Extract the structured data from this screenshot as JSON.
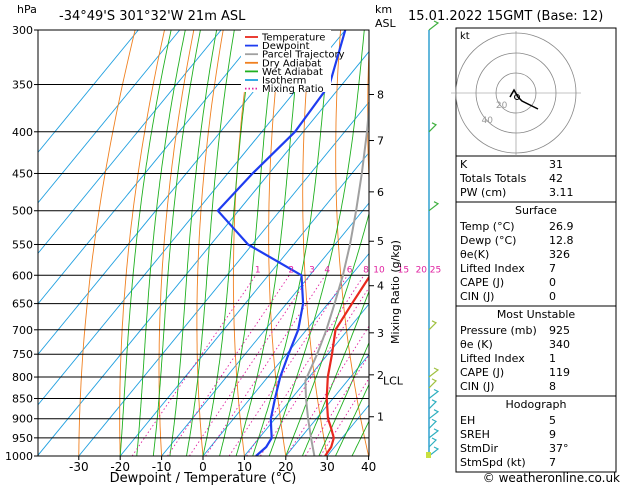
{
  "header": {
    "location": "-34°49'S 301°32'W 21m ASL",
    "datetime": "15.01.2022 15GMT (Base: 12)",
    "hpa_label": "hPa",
    "km_label": "km",
    "asl_label": "ASL",
    "mixing_axis_label": "Mixing Ratio (g/kg)",
    "xlabel": "Dewpoint / Temperature (°C)",
    "credit": "© weatheronline.co.uk"
  },
  "legend": [
    {
      "label": "Temperature",
      "color": "#e8281e",
      "style": "solid"
    },
    {
      "label": "Dewpoint",
      "color": "#1e3cf0",
      "style": "solid"
    },
    {
      "label": "Parcel Trajectory",
      "color": "#a0a0a0",
      "style": "solid"
    },
    {
      "label": "Dry Adiabat",
      "color": "#f08020",
      "style": "solid"
    },
    {
      "label": "Wet Adiabat",
      "color": "#20b020",
      "style": "solid"
    },
    {
      "label": "Isotherm",
      "color": "#20a0e0",
      "style": "solid"
    },
    {
      "label": "Mixing Ratio",
      "color": "#e020a0",
      "style": "dotted"
    }
  ],
  "chart_data": {
    "type": "line",
    "title": "",
    "xlabel": "Dewpoint / Temperature (°C)",
    "ylabel": "hPa",
    "x_ticks": [
      -30,
      -20,
      -10,
      0,
      10,
      20,
      30,
      40
    ],
    "pressure_levels": [
      300,
      350,
      400,
      450,
      500,
      550,
      600,
      650,
      700,
      750,
      800,
      850,
      900,
      950,
      1000
    ],
    "km_ticks": [
      {
        "label": "8",
        "p": 360
      },
      {
        "label": "7",
        "p": 410
      },
      {
        "label": "6",
        "p": 474
      },
      {
        "label": "5",
        "p": 545
      },
      {
        "label": "4",
        "p": 618
      },
      {
        "label": "3",
        "p": 706
      },
      {
        "label": "2",
        "p": 795
      },
      {
        "label": "1",
        "p": 895
      }
    ],
    "lcl": {
      "label": "LCL",
      "p": 808
    },
    "mixing_ratio_labels": [
      "1",
      "2",
      "3",
      "4",
      "6",
      "8",
      "10",
      "15",
      "20",
      "25"
    ],
    "mixing_ratio_values": [
      1,
      2,
      3,
      4,
      6,
      8,
      10,
      15,
      20,
      25
    ],
    "series": [
      {
        "name": "Temperature",
        "color": "#e8281e",
        "points": [
          [
            1000,
            29.5
          ],
          [
            975,
            29.2
          ],
          [
            950,
            28.0
          ],
          [
            925,
            25.5
          ],
          [
            900,
            22.8
          ],
          [
            850,
            18.5
          ],
          [
            800,
            14.5
          ],
          [
            750,
            11.0
          ],
          [
            700,
            7.0
          ],
          [
            650,
            5.8
          ],
          [
            600,
            4.6
          ],
          [
            550,
            1.4
          ],
          [
            500,
            -3.0
          ],
          [
            450,
            -8.6
          ],
          [
            400,
            -14.8
          ],
          [
            350,
            -25.6
          ],
          [
            300,
            -35.0
          ]
        ]
      },
      {
        "name": "Dewpoint",
        "color": "#1e3cf0",
        "points": [
          [
            1000,
            12.8
          ],
          [
            975,
            13.5
          ],
          [
            950,
            13.0
          ],
          [
            925,
            11.0
          ],
          [
            900,
            9.0
          ],
          [
            850,
            6.0
          ],
          [
            800,
            3.0
          ],
          [
            750,
            0.5
          ],
          [
            700,
            -2.0
          ],
          [
            650,
            -6.0
          ],
          [
            600,
            -12.0
          ],
          [
            550,
            -31.0
          ],
          [
            500,
            -45.0
          ],
          [
            450,
            -44.0
          ],
          [
            400,
            -42.0
          ],
          [
            350,
            -43.0
          ],
          [
            300,
            -50.0
          ]
        ]
      },
      {
        "name": "Parcel Trajectory",
        "color": "#a0a0a0",
        "points": [
          [
            1000,
            26.9
          ],
          [
            950,
            22.5
          ],
          [
            900,
            18.0
          ],
          [
            850,
            13.5
          ],
          [
            808,
            9.8
          ],
          [
            750,
            7.4
          ],
          [
            700,
            4.8
          ],
          [
            650,
            1.6
          ],
          [
            600,
            -2.0
          ],
          [
            550,
            -6.4
          ],
          [
            500,
            -11.6
          ],
          [
            450,
            -17.6
          ],
          [
            400,
            -24.6
          ],
          [
            350,
            -33.0
          ],
          [
            300,
            -43.0
          ]
        ]
      }
    ],
    "wind_barbs_p": [
      1000,
      975,
      950,
      925,
      900,
      875,
      850,
      825,
      800,
      700,
      500,
      400,
      300
    ]
  },
  "indices": {
    "rows": [
      {
        "label": "K",
        "value": "31"
      },
      {
        "label": "Totals Totals",
        "value": "42"
      },
      {
        "label": "PW (cm)",
        "value": "3.11"
      }
    ]
  },
  "surface": {
    "title": "Surface",
    "rows": [
      {
        "label": "Temp (°C)",
        "value": "26.9"
      },
      {
        "label": "Dewp (°C)",
        "value": "12.8"
      },
      {
        "label": "θe(K)",
        "value": "326"
      },
      {
        "label": "Lifted Index",
        "value": "7"
      },
      {
        "label": "CAPE (J)",
        "value": "0"
      },
      {
        "label": "CIN (J)",
        "value": "0"
      }
    ]
  },
  "most_unstable": {
    "title": "Most Unstable",
    "rows": [
      {
        "label": "Pressure (mb)",
        "value": "925"
      },
      {
        "label": "θe (K)",
        "value": "340"
      },
      {
        "label": "Lifted Index",
        "value": "1"
      },
      {
        "label": "CAPE (J)",
        "value": "119"
      },
      {
        "label": "CIN (J)",
        "value": "8"
      }
    ]
  },
  "hodograph_table": {
    "title": "Hodograph",
    "rows": [
      {
        "label": "EH",
        "value": "5"
      },
      {
        "label": "SREH",
        "value": "9"
      },
      {
        "label": "StmDir",
        "value": "37°"
      },
      {
        "label": "StmSpd (kt)",
        "value": "7"
      }
    ]
  },
  "hodograph": {
    "unit_label": "kt",
    "ring_labels": [
      "20",
      "40"
    ],
    "trace_color": "#000000"
  }
}
